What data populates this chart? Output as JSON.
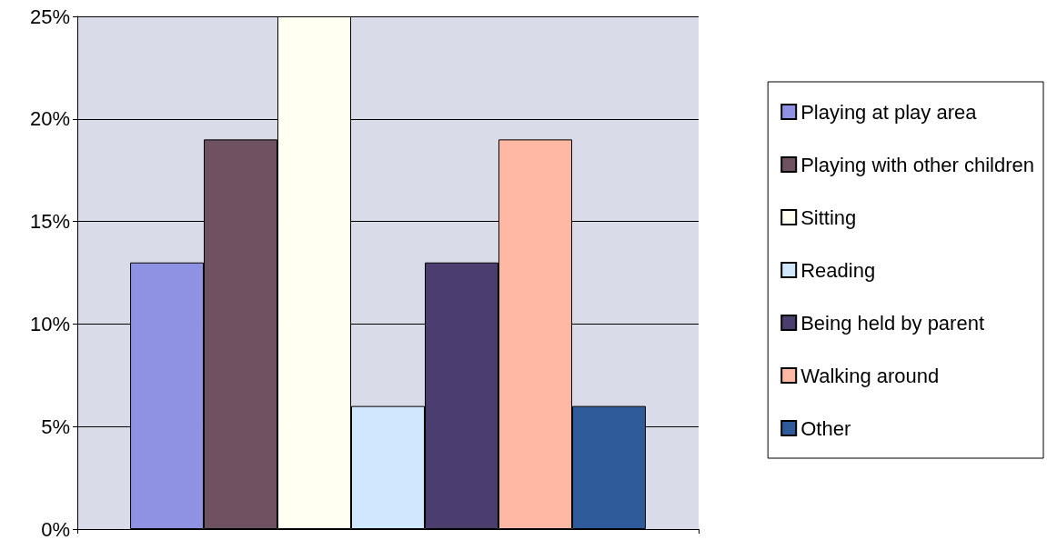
{
  "chart_data": {
    "type": "bar",
    "categories": [
      null
    ],
    "series": [
      {
        "name": "Playing at play area",
        "color": "#8f92e2",
        "values": [
          13
        ]
      },
      {
        "name": "Playing with other children",
        "color": "#6e5262",
        "values": [
          19
        ]
      },
      {
        "name": "Sitting",
        "color": "#fffff2",
        "values": [
          25
        ]
      },
      {
        "name": "Reading",
        "color": "#cfe8fd",
        "values": [
          6
        ]
      },
      {
        "name": "Being held by parent",
        "color": "#4b3d6e",
        "values": [
          13
        ]
      },
      {
        "name": "Walking around",
        "color": "#ffb8a4",
        "values": [
          19
        ]
      },
      {
        "name": "Other",
        "color": "#2f5b9b",
        "values": [
          6
        ]
      }
    ],
    "ylim": [
      0,
      25
    ],
    "yticks": [
      {
        "value": 0,
        "label": "0%"
      },
      {
        "value": 5,
        "label": "5%"
      },
      {
        "value": 10,
        "label": "10%"
      },
      {
        "value": 15,
        "label": "15%"
      },
      {
        "value": 20,
        "label": "20%"
      },
      {
        "value": 25,
        "label": "25%"
      }
    ],
    "grid": "y",
    "legend": "right"
  }
}
